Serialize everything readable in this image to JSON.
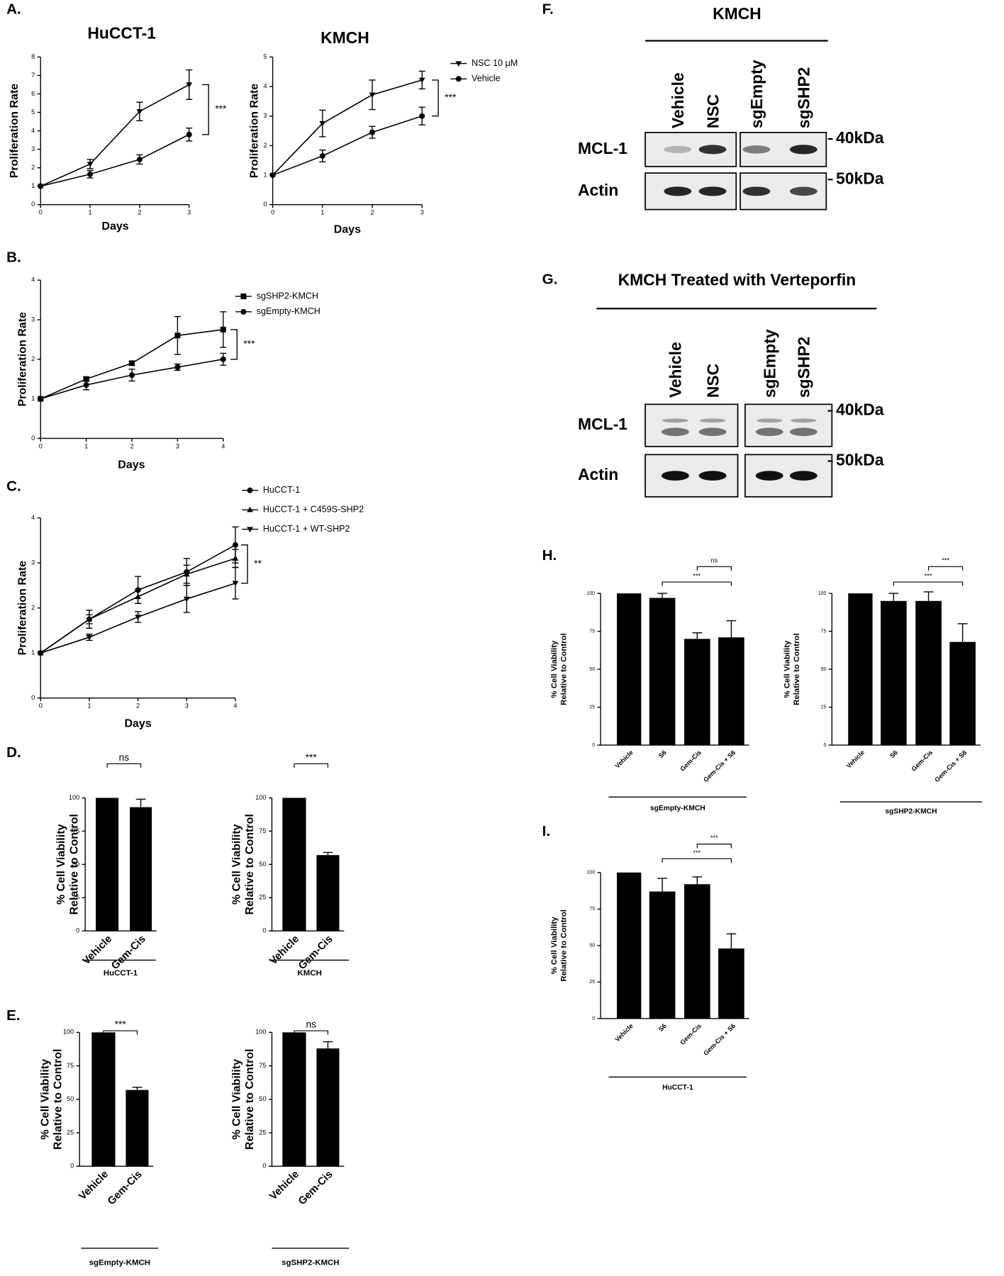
{
  "chart_data": [
    {
      "type": "line",
      "panel": "A.",
      "title": "HuCCT-1",
      "xlabel": "Days",
      "ylabel": "Proliferation Rate",
      "x": [
        0,
        1,
        2,
        3
      ],
      "xlim": [
        0,
        3
      ],
      "xticks": [
        0,
        1,
        2,
        3
      ],
      "ylim": [
        0,
        8
      ],
      "yticks": [
        0,
        1,
        2,
        3,
        4,
        5,
        6,
        7,
        8
      ],
      "significance": "***",
      "series": [
        {
          "marker": "triangle-down",
          "color": "#000000",
          "values": [
            1,
            2.2,
            5.05,
            6.5
          ],
          "errors": [
            0,
            0.25,
            0.5,
            0.8
          ]
        },
        {
          "marker": "circle",
          "color": "#000000",
          "values": [
            1,
            1.65,
            2.45,
            3.8
          ],
          "errors": [
            0,
            0.2,
            0.25,
            0.35
          ]
        }
      ]
    },
    {
      "type": "line",
      "title": "KMCH",
      "xlabel": "Days",
      "ylabel": "Proliferation Rate",
      "x": [
        0,
        1,
        2,
        3
      ],
      "xlim": [
        0,
        3
      ],
      "xticks": [
        0,
        1,
        2,
        3
      ],
      "ylim": [
        0,
        5
      ],
      "yticks": [
        0,
        1,
        2,
        3,
        4,
        5
      ],
      "significance": "***",
      "series": [
        {
          "name": "NSC 10 μM",
          "marker": "triangle-down",
          "color": "#000000",
          "values": [
            1,
            2.75,
            3.72,
            4.22
          ],
          "errors": [
            0,
            0.45,
            0.5,
            0.3
          ]
        },
        {
          "name": "Vehicle",
          "marker": "circle",
          "color": "#000000",
          "values": [
            1,
            1.65,
            2.45,
            3
          ],
          "errors": [
            0,
            0.2,
            0.2,
            0.3
          ]
        }
      ]
    },
    {
      "type": "line",
      "panel": "B.",
      "xlabel": "Days",
      "ylabel": "Proliferation Rate",
      "x": [
        0,
        1,
        2,
        3,
        4
      ],
      "xlim": [
        0,
        4
      ],
      "xticks": [
        0,
        1,
        2,
        3,
        4
      ],
      "ylim": [
        0,
        4
      ],
      "yticks": [
        0,
        1,
        2,
        3,
        4
      ],
      "significance": "***",
      "series": [
        {
          "name": "sgSHP2-KMCH",
          "marker": "square",
          "color": "#000000",
          "values": [
            1,
            1.5,
            1.9,
            2.6,
            2.75
          ],
          "errors": [
            0,
            0.05,
            0.05,
            0.48,
            0.45
          ]
        },
        {
          "name": "sgEmpty-KMCH",
          "marker": "circle",
          "color": "#000000",
          "values": [
            1,
            1.35,
            1.6,
            1.8,
            2.0
          ],
          "errors": [
            0,
            0.12,
            0.15,
            0.08,
            0.15
          ]
        }
      ]
    },
    {
      "type": "line",
      "panel": "C.",
      "xlabel": "Days",
      "ylabel": "Proliferation Rate",
      "x": [
        0,
        1,
        2,
        3,
        4
      ],
      "xlim": [
        0,
        4
      ],
      "xticks": [
        0,
        1,
        2,
        3,
        4
      ],
      "ylim": [
        0,
        4
      ],
      "yticks": [
        0,
        1,
        2,
        3,
        4
      ],
      "significance": "**",
      "series": [
        {
          "name": "HuCCT-1",
          "marker": "circle",
          "color": "#000000",
          "values": [
            1,
            1.75,
            2.4,
            2.8,
            3.4
          ],
          "errors": [
            0,
            0.2,
            0.3,
            0.3,
            0.4
          ]
        },
        {
          "name": "HuCCT-1 + C459S-SHP2",
          "marker": "triangle-up",
          "color": "#000000",
          "values": [
            1,
            1.75,
            2.25,
            2.75,
            3.1
          ],
          "errors": [
            0,
            0.1,
            0.15,
            0.2,
            0.2
          ]
        },
        {
          "name": "HuCCT-1 + WT-SHP2",
          "marker": "triangle-down",
          "color": "#000000",
          "values": [
            1,
            1.35,
            1.8,
            2.2,
            2.55
          ],
          "errors": [
            0,
            0.07,
            0.12,
            0.3,
            0.35
          ]
        }
      ]
    },
    {
      "type": "bar",
      "panel": "D.",
      "group": "HuCCT-1",
      "ylabel": [
        "% Cell Viability",
        "Relative to Control"
      ],
      "categories": [
        "Vehicle",
        "Gem-Cis"
      ],
      "values": [
        100,
        93
      ],
      "errors": [
        0,
        6
      ],
      "ylim": [
        0,
        100
      ],
      "yticks": [
        0,
        25,
        50,
        75,
        100
      ],
      "color": "#000000",
      "comparisons": [
        {
          "label": "ns",
          "between": [
            0,
            1
          ]
        }
      ]
    },
    {
      "type": "bar",
      "group": "KMCH",
      "ylabel": [
        "% Cell Viability",
        "Relative to Control"
      ],
      "categories": [
        "Vehicle",
        "Gem-Cis"
      ],
      "values": [
        100,
        57
      ],
      "errors": [
        0,
        2
      ],
      "ylim": [
        0,
        100
      ],
      "yticks": [
        0,
        25,
        50,
        75,
        100
      ],
      "color": "#000000",
      "comparisons": [
        {
          "label": "***",
          "between": [
            0,
            1
          ]
        }
      ]
    },
    {
      "type": "bar",
      "panel": "E.",
      "group": "sgEmpty-KMCH",
      "ylabel": [
        "% Cell Viability",
        "Relative to Control"
      ],
      "categories": [
        "Vehicle",
        "Gem-Cis"
      ],
      "values": [
        100,
        57
      ],
      "errors": [
        0,
        2
      ],
      "ylim": [
        0,
        100
      ],
      "yticks": [
        0,
        25,
        50,
        75,
        100
      ],
      "color": "#000000",
      "comparisons": [
        {
          "label": "***",
          "between": [
            0,
            1
          ]
        }
      ]
    },
    {
      "type": "bar",
      "group": "sgSHP2-KMCH",
      "ylabel": [
        "% Cell Viability",
        "Relative to Control"
      ],
      "categories": [
        "Vehicle",
        "Gem-Cis"
      ],
      "values": [
        100,
        88
      ],
      "errors": [
        0,
        5
      ],
      "ylim": [
        0,
        100
      ],
      "yticks": [
        0,
        25,
        50,
        75,
        100
      ],
      "color": "#000000",
      "comparisons": [
        {
          "label": "ns",
          "between": [
            0,
            1
          ]
        }
      ]
    },
    {
      "type": "bar",
      "panel": "H.",
      "group": "sgEmpty-KMCH",
      "ylabel": [
        "% Cell Viability",
        "Relative to Control"
      ],
      "categories": [
        "Vehicle",
        "S6",
        "Gem-Cis",
        "Gem-Cis + S6"
      ],
      "values": [
        100,
        97,
        70,
        71
      ],
      "errors": [
        0,
        3,
        4,
        11
      ],
      "ylim": [
        0,
        100
      ],
      "yticks": [
        0,
        25,
        50,
        75,
        100
      ],
      "color": "#000000",
      "comparisons": [
        {
          "label": "***",
          "between": [
            1,
            3
          ]
        },
        {
          "label": "ns",
          "between": [
            2,
            3
          ]
        }
      ]
    },
    {
      "type": "bar",
      "group": "sgSHP2-KMCH",
      "ylabel": [
        "% Cell Viability",
        "Relative to Control"
      ],
      "categories": [
        "Vehicle",
        "S6",
        "Gem-Cis",
        "Gem-Cis + S6"
      ],
      "values": [
        100,
        95,
        95,
        68
      ],
      "errors": [
        0,
        5,
        6,
        12
      ],
      "ylim": [
        0,
        100
      ],
      "yticks": [
        0,
        25,
        50,
        75,
        100
      ],
      "color": "#000000",
      "comparisons": [
        {
          "label": "***",
          "between": [
            1,
            3
          ]
        },
        {
          "label": "***",
          "between": [
            2,
            3
          ]
        }
      ]
    },
    {
      "type": "bar",
      "panel": "I.",
      "group": "HuCCT-1",
      "ylabel": [
        "% Cell Viability",
        "Relative to Control"
      ],
      "categories": [
        "Vehicle",
        "S6",
        "Gem-Cis",
        "Gem-Cis + S6"
      ],
      "values": [
        100,
        87,
        92,
        48
      ],
      "errors": [
        0,
        9,
        5,
        10
      ],
      "ylim": [
        0,
        100
      ],
      "yticks": [
        0,
        25,
        50,
        75,
        100
      ],
      "color": "#000000",
      "comparisons": [
        {
          "label": "***",
          "between": [
            1,
            3
          ]
        },
        {
          "label": "***",
          "between": [
            2,
            3
          ]
        }
      ]
    }
  ],
  "blots": [
    {
      "panel": "F.",
      "title": "KMCH",
      "lanes": [
        "Vehicle",
        "NSC",
        "sgEmpty",
        "sgSHP2"
      ],
      "rows": [
        {
          "label": "MCL-1",
          "size": "40kDa"
        },
        {
          "label": "Actin",
          "size": "50kDa"
        }
      ]
    },
    {
      "panel": "G.",
      "title": "KMCH Treated with Verteporfin",
      "lanes": [
        "Vehicle",
        "NSC",
        "sgEmpty",
        "sgSHP2"
      ],
      "rows": [
        {
          "label": "MCL-1",
          "size": "40kDa"
        },
        {
          "label": "Actin",
          "size": "50kDa"
        }
      ]
    }
  ]
}
